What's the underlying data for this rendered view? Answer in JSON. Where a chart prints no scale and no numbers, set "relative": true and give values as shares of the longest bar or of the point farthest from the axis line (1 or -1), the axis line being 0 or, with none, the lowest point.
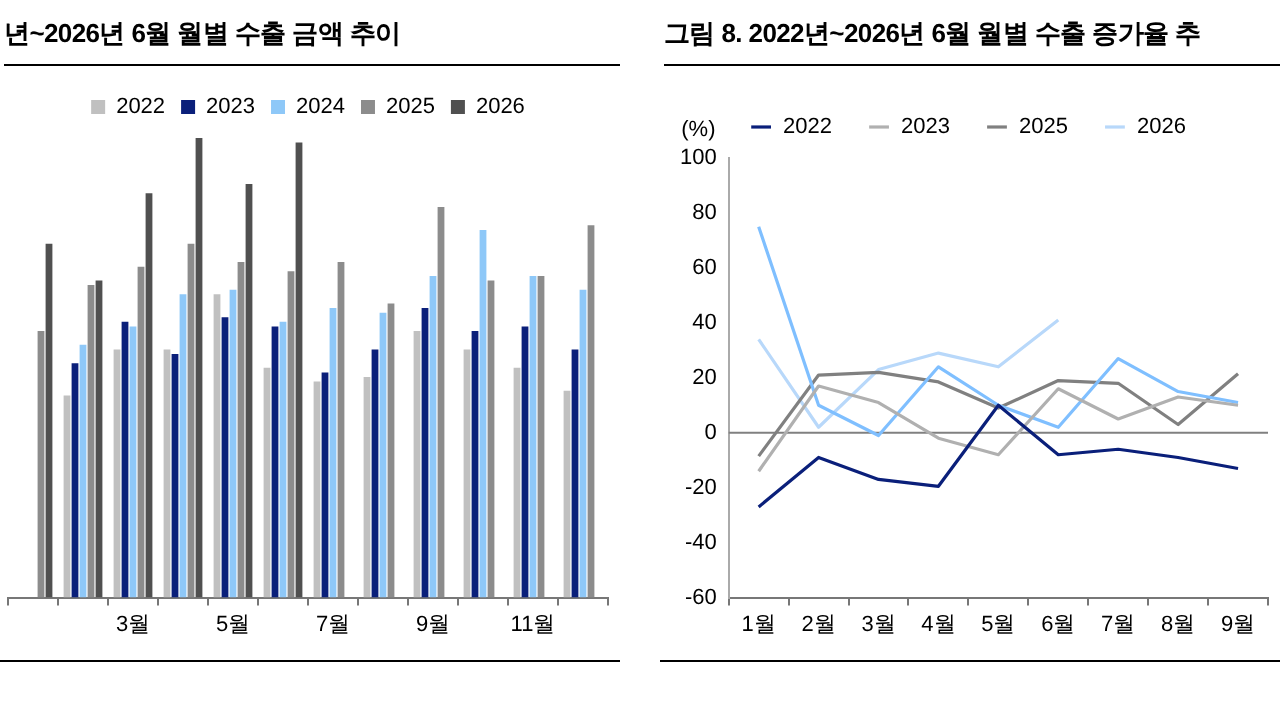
{
  "chart_data": [
    {
      "type": "bar",
      "title": "년~2026년 6월 월별 수출 금액 추이",
      "relative": true,
      "legend": "top",
      "grid": false,
      "categories": [
        null,
        null,
        "3월",
        null,
        "5월",
        null,
        "7월",
        null,
        "9월",
        null,
        "11월",
        null
      ],
      "series": [
        {
          "name": "2022",
          "color": "#c0c0c0",
          "values": [
            null,
            0.44,
            0.54,
            0.54,
            0.66,
            0.5,
            0.47,
            0.48,
            0.58,
            0.54,
            0.5,
            0.45
          ]
        },
        {
          "name": "2023",
          "color": "#0a1f7a",
          "values": [
            null,
            0.51,
            0.6,
            0.53,
            0.61,
            0.59,
            0.49,
            0.54,
            0.63,
            0.58,
            0.59,
            0.54
          ]
        },
        {
          "name": "2024",
          "color": "#8ec8f8",
          "values": [
            null,
            0.55,
            0.59,
            0.66,
            0.67,
            0.6,
            0.63,
            0.62,
            0.7,
            0.8,
            0.7,
            0.67
          ]
        },
        {
          "name": "2025",
          "color": "#8c8c8c",
          "values": [
            0.58,
            0.68,
            0.72,
            0.77,
            0.73,
            0.71,
            0.73,
            0.64,
            0.85,
            0.69,
            0.7,
            0.81
          ]
        },
        {
          "name": "2026",
          "color": "#505050",
          "values": [
            0.77,
            0.69,
            0.88,
            1,
            0.9,
            0.99,
            null,
            null,
            null,
            null,
            null,
            null
          ]
        }
      ]
    },
    {
      "type": "line",
      "title": "그림 8. 2022년~2026년 6월 월별 수출 증가율 추",
      "ylabel": "(%)",
      "legend": "top",
      "grid": false,
      "marker": "none",
      "categories": [
        "1월",
        "2월",
        "3월",
        "4월",
        "5월",
        "6월",
        "7월",
        "8월",
        "9월"
      ],
      "ylim": [
        -60,
        100
      ],
      "yticks": [
        -60,
        -40,
        -20,
        0,
        20,
        40,
        60,
        80,
        100
      ],
      "ref_lines": [
        {
          "axis": "y",
          "value": 0,
          "color": "#808080"
        }
      ],
      "series": [
        {
          "name": "2022",
          "color": "#0a1f7a",
          "values": [
            -27,
            -9,
            -17,
            -19.5,
            10,
            -8,
            -6,
            -9,
            -13
          ]
        },
        {
          "name": "2023",
          "color": "#b0b0b0",
          "values": [
            -14,
            17,
            11,
            -2,
            -8,
            16,
            5,
            13,
            10
          ]
        },
        {
          "color": "#7fbfff",
          "values": [
            75,
            10,
            -1,
            24,
            10,
            2,
            27,
            15,
            11
          ]
        },
        {
          "name": "2025",
          "color": "#808080",
          "values": [
            -8.5,
            21,
            22,
            18.5,
            9,
            19,
            18,
            3,
            21.5
          ]
        },
        {
          "name": "2026",
          "color": "#b8d8fa",
          "values": [
            34,
            2,
            23,
            29,
            24,
            41,
            null,
            null,
            null
          ]
        }
      ]
    }
  ]
}
